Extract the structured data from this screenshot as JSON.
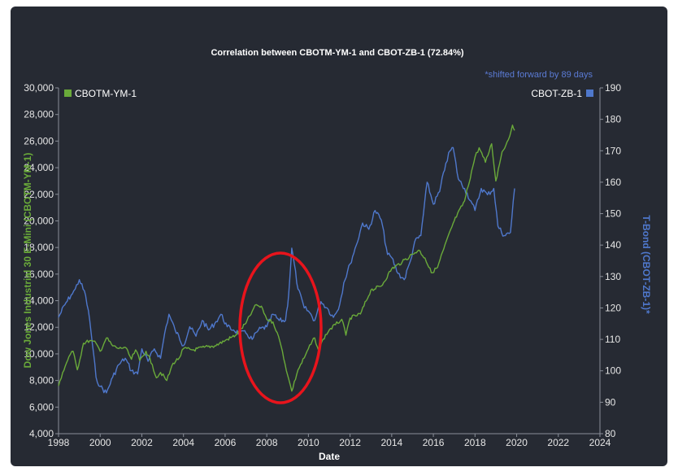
{
  "chart_data": {
    "type": "line",
    "title": "Correlation between CBOTM-YM-1 and CBOT-ZB-1 (72.84%)",
    "note": "*shifted forward by 89 days",
    "xlabel": "Date",
    "ylabel_left": "Dow Jones Industrial 30 E-Mini (CBOTM-YM-1)",
    "ylabel_right": "T-Bond (CBOT-ZB-1)*",
    "xlim": [
      1998,
      2024
    ],
    "x_ticks": [
      "1998",
      "2000",
      "2002",
      "2004",
      "2006",
      "2008",
      "2010",
      "2012",
      "2014",
      "2016",
      "2018",
      "2020",
      "2022",
      "2024"
    ],
    "ylim_left": [
      4000,
      30000
    ],
    "y_ticks_left": [
      "4,000",
      "6,000",
      "8,000",
      "10,000",
      "12,000",
      "14,000",
      "16,000",
      "18,000",
      "20,000",
      "22,000",
      "24,000",
      "26,000",
      "28,000",
      "30,000"
    ],
    "ylim_right": [
      80,
      190
    ],
    "y_ticks_right": [
      "80",
      "90",
      "100",
      "110",
      "120",
      "130",
      "140",
      "150",
      "160",
      "170",
      "180",
      "190"
    ],
    "legend": "top",
    "grid": false,
    "series": [
      {
        "name": "CBOTM-YM-1",
        "axis": "left",
        "color": "#6aaa3a",
        "x": [
          1998.0,
          1998.2,
          1998.5,
          1998.7,
          1998.9,
          1999.2,
          1999.5,
          1999.8,
          2000.0,
          2000.3,
          2000.6,
          2000.9,
          2001.2,
          2001.5,
          2001.7,
          2001.9,
          2002.2,
          2002.5,
          2002.7,
          2002.9,
          2003.2,
          2003.5,
          2003.8,
          2004.0,
          2004.5,
          2005.0,
          2005.5,
          2006.0,
          2006.5,
          2007.0,
          2007.3,
          2007.5,
          2007.8,
          2008.0,
          2008.3,
          2008.5,
          2008.75,
          2009.0,
          2009.2,
          2009.5,
          2009.8,
          2010.0,
          2010.3,
          2010.5,
          2010.7,
          2011.0,
          2011.3,
          2011.6,
          2011.8,
          2012.0,
          2012.5,
          2013.0,
          2013.5,
          2014.0,
          2014.5,
          2015.0,
          2015.3,
          2015.6,
          2015.9,
          2016.2,
          2016.5,
          2017.0,
          2017.5,
          2018.0,
          2018.2,
          2018.5,
          2018.8,
          2019.0,
          2019.3,
          2019.6,
          2019.8,
          2019.9
        ],
        "y": [
          7600,
          8600,
          9800,
          10200,
          8800,
          10800,
          11000,
          10800,
          10200,
          11200,
          10600,
          10400,
          10500,
          9600,
          10300,
          9500,
          10200,
          9200,
          8200,
          8600,
          8000,
          9300,
          9700,
          10400,
          10300,
          10500,
          10600,
          11000,
          11400,
          12300,
          13200,
          13700,
          13400,
          12600,
          12400,
          11600,
          10200,
          8400,
          7200,
          8800,
          9700,
          10400,
          11200,
          10200,
          11100,
          11800,
          12200,
          12600,
          11400,
          12700,
          13000,
          14800,
          15100,
          16400,
          16900,
          17500,
          17800,
          17200,
          16100,
          16500,
          17900,
          20000,
          21500,
          24800,
          25500,
          24400,
          25800,
          23000,
          25200,
          26100,
          27200,
          26800
        ]
      },
      {
        "name": "CBOT-ZB-1",
        "axis": "right",
        "color": "#4f78cc",
        "x": [
          1998.0,
          1998.3,
          1998.6,
          1998.8,
          1999.0,
          1999.3,
          1999.5,
          1999.8,
          2000.0,
          2000.3,
          2000.6,
          2000.9,
          2001.2,
          2001.5,
          2001.8,
          2002.0,
          2002.3,
          2002.6,
          2002.9,
          2003.1,
          2003.3,
          2003.6,
          2004.0,
          2004.3,
          2004.6,
          2004.9,
          2005.2,
          2005.5,
          2005.8,
          2006.1,
          2006.4,
          2006.7,
          2007.0,
          2007.3,
          2007.6,
          2008.0,
          2008.3,
          2008.6,
          2008.9,
          2009.05,
          2009.2,
          2009.5,
          2009.8,
          2010.0,
          2010.3,
          2010.6,
          2010.9,
          2011.2,
          2011.5,
          2011.7,
          2012.0,
          2012.3,
          2012.6,
          2012.9,
          2013.2,
          2013.5,
          2013.8,
          2014.0,
          2014.3,
          2014.6,
          2014.9,
          2015.1,
          2015.4,
          2015.7,
          2016.0,
          2016.3,
          2016.6,
          2016.8,
          2016.95,
          2017.2,
          2017.5,
          2017.8,
          2018.0,
          2018.3,
          2018.6,
          2018.9,
          2019.1,
          2019.4,
          2019.7,
          2019.9
        ],
        "y": [
          117,
          121,
          124,
          126,
          129,
          124,
          116,
          98,
          95,
          93,
          98,
          102,
          104,
          100,
          99,
          107,
          103,
          107,
          104,
          112,
          118,
          113,
          108,
          114,
          111,
          116,
          113,
          115,
          118,
          114,
          113,
          112,
          112,
          110,
          113,
          114,
          118,
          116,
          116,
          124,
          139,
          126,
          120,
          119,
          116,
          122,
          120,
          117,
          121,
          128,
          134,
          140,
          147,
          145,
          151,
          148,
          137,
          136,
          131,
          129,
          135,
          141,
          143,
          160,
          153,
          157,
          166,
          170,
          171,
          161,
          158,
          154,
          151,
          158,
          156,
          158,
          146,
          143,
          144,
          158
        ]
      }
    ]
  }
}
